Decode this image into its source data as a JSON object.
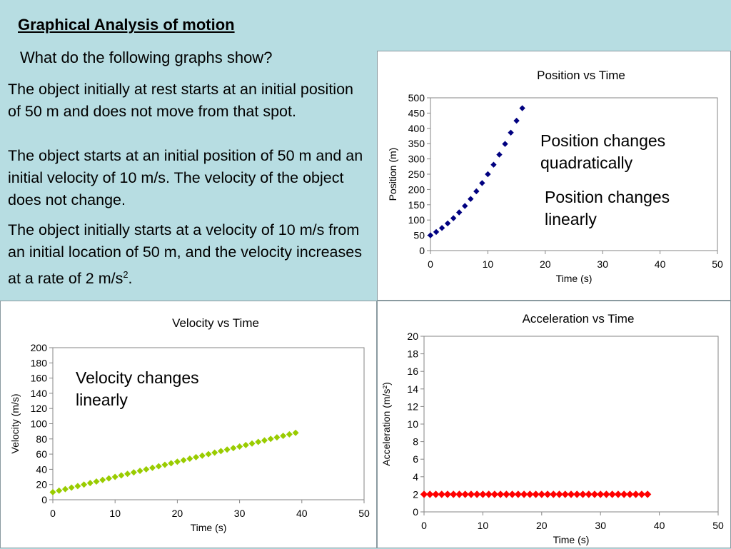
{
  "slide": {
    "title": "Graphical Analysis of motion",
    "question": "What do the following graphs show?",
    "descriptions": [
      "The object initially at rest starts at an initial position of 50 m and does not move from that spot.",
      "The object starts at an initial position of 50 m and an initial velocity of 10 m/s.  The velocity of the object does not change.",
      "The object initially starts at a velocity of 10 m/s from an initial location of 50 m, and the velocity increases at a rate of 2 m/s"
    ],
    "desc3_superscript": "2",
    "desc3_end": ".",
    "annotations": {
      "position_quadratic": "Position changes quadratically",
      "position_linear": "Position changes linearly",
      "velocity_linear": "Velocity changes linearly"
    }
  },
  "chart_data": [
    {
      "id": "position",
      "type": "scatter",
      "title": "Position vs Time",
      "xlabel": "Time (s)",
      "ylabel": "Position (m)",
      "xlim": [
        0,
        50
      ],
      "ylim": [
        0,
        500
      ],
      "xticks": [
        0,
        10,
        20,
        30,
        40,
        50
      ],
      "yticks": [
        0,
        50,
        100,
        150,
        200,
        250,
        300,
        350,
        400,
        450,
        500
      ],
      "color": "#000080",
      "marker": "diamond",
      "x": [
        0,
        1,
        2,
        3,
        4,
        5,
        6,
        7,
        8,
        9,
        10,
        11,
        12,
        13,
        14,
        15,
        16
      ],
      "y": [
        50,
        61,
        74,
        89,
        106,
        125,
        146,
        169,
        194,
        221,
        250,
        281,
        314,
        349,
        386,
        425,
        466
      ]
    },
    {
      "id": "velocity",
      "type": "scatter",
      "title": "Velocity vs Time",
      "xlabel": "Time (s)",
      "ylabel": "Velocity (m/s)",
      "xlim": [
        0,
        50
      ],
      "ylim": [
        0,
        200
      ],
      "xticks": [
        0,
        10,
        20,
        30,
        40,
        50
      ],
      "yticks": [
        0,
        20,
        40,
        60,
        80,
        100,
        120,
        140,
        160,
        180,
        200
      ],
      "color": "#99cc00",
      "marker": "diamond",
      "x": [
        0,
        1,
        2,
        3,
        4,
        5,
        6,
        7,
        8,
        9,
        10,
        11,
        12,
        13,
        14,
        15,
        16,
        17,
        18,
        19,
        20,
        21,
        22,
        23,
        24,
        25,
        26,
        27,
        28,
        29,
        30,
        31,
        32,
        33,
        34,
        35,
        36,
        37,
        38,
        39
      ],
      "y": [
        10,
        12,
        14,
        16,
        18,
        20,
        22,
        24,
        26,
        28,
        30,
        32,
        34,
        36,
        38,
        40,
        42,
        44,
        46,
        48,
        50,
        52,
        54,
        56,
        58,
        60,
        62,
        64,
        66,
        68,
        70,
        72,
        74,
        76,
        78,
        80,
        82,
        84,
        86,
        88
      ]
    },
    {
      "id": "acceleration",
      "type": "scatter",
      "title": "Acceleration vs Time",
      "xlabel": "Time (s)",
      "ylabel": "Acceleration (m/s²)",
      "xlim": [
        0,
        50
      ],
      "ylim": [
        0,
        20
      ],
      "xticks": [
        0,
        10,
        20,
        30,
        40,
        50
      ],
      "yticks": [
        0,
        2,
        4,
        6,
        8,
        10,
        12,
        14,
        16,
        18,
        20
      ],
      "color": "#ff0000",
      "marker": "diamond",
      "x": [
        0,
        1,
        2,
        3,
        4,
        5,
        6,
        7,
        8,
        9,
        10,
        11,
        12,
        13,
        14,
        15,
        16,
        17,
        18,
        19,
        20,
        21,
        22,
        23,
        24,
        25,
        26,
        27,
        28,
        29,
        30,
        31,
        32,
        33,
        34,
        35,
        36,
        37,
        38
      ],
      "y": [
        2,
        2,
        2,
        2,
        2,
        2,
        2,
        2,
        2,
        2,
        2,
        2,
        2,
        2,
        2,
        2,
        2,
        2,
        2,
        2,
        2,
        2,
        2,
        2,
        2,
        2,
        2,
        2,
        2,
        2,
        2,
        2,
        2,
        2,
        2,
        2,
        2,
        2,
        2
      ]
    }
  ]
}
